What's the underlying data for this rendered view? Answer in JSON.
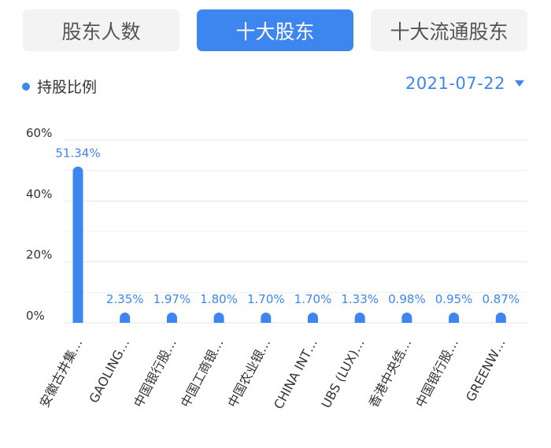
{
  "tabs": [
    {
      "label": "股东人数",
      "active": false
    },
    {
      "label": "十大股东",
      "active": true
    },
    {
      "label": "十大流通股东",
      "active": false
    }
  ],
  "legend": {
    "label": "持股比例",
    "color": "#3d86f0"
  },
  "date_selector": {
    "value": "2021-07-22",
    "icon": "caret-down-icon"
  },
  "colors": {
    "accent": "#3d86f0",
    "inactive_tab_bg": "#f3f3f3",
    "grid": "#e6e6e6"
  },
  "chart_data": {
    "type": "bar",
    "title": "",
    "xlabel": "",
    "ylabel": "",
    "grid": true,
    "ylim": [
      0,
      60
    ],
    "yticks": [
      {
        "value": 0,
        "label": "0%"
      },
      {
        "value": 20,
        "label": "20%"
      },
      {
        "value": 40,
        "label": "40%"
      },
      {
        "value": 60,
        "label": "60%"
      }
    ],
    "categories": [
      "安徽古井集…",
      "GAOLING…",
      "中国银行股…",
      "中国工商银…",
      "中国农业银…",
      "CHINA INT…",
      "UBS (LUX)…",
      "香港中央结…",
      "中国银行股…",
      "GREENW…"
    ],
    "values": [
      51.34,
      2.35,
      1.97,
      1.8,
      1.7,
      1.7,
      1.33,
      0.98,
      0.95,
      0.87
    ],
    "value_labels": [
      "51.34%",
      "2.35%",
      "1.97%",
      "1.80%",
      "1.70%",
      "1.70%",
      "1.33%",
      "0.98%",
      "0.95%",
      "0.87%"
    ]
  }
}
